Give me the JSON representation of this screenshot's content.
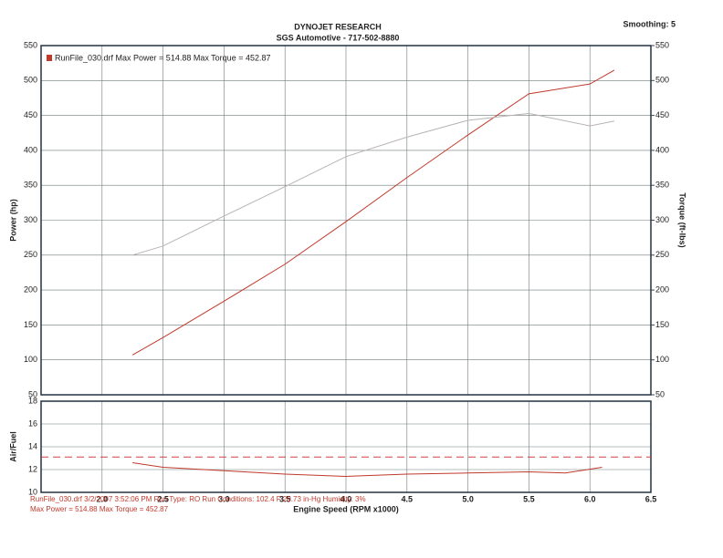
{
  "chart_data": [
    {
      "type": "line",
      "title": "DYNOJET RESEARCH",
      "subtitle": "SGS Automotive - 717-502-8880",
      "smoothing": "Smoothing: 5",
      "legend_text": "RunFile_030.drf Max Power = 514.88   Max Torque = 452.87",
      "x": [
        2.25,
        2.5,
        3.0,
        3.5,
        4.0,
        4.5,
        5.0,
        5.5,
        6.0,
        6.2
      ],
      "xlim": [
        1.5,
        6.5
      ],
      "ylim": [
        50,
        550
      ],
      "yticks": [
        50,
        100,
        150,
        200,
        250,
        300,
        350,
        400,
        450,
        500,
        550
      ],
      "y2lim": [
        50,
        550
      ],
      "y2ticks": [
        50,
        100,
        150,
        200,
        250,
        300,
        350,
        400,
        450,
        500,
        550
      ],
      "grid": true,
      "series": [
        {
          "name": "Power (hp)",
          "color": "#c0392b",
          "values": [
            107,
            132,
            184,
            237,
            298,
            361,
            422,
            481,
            495,
            514.88
          ]
        },
        {
          "name": "Torque (ft-lbs)",
          "color": "#b9b3b3",
          "axis": "y2",
          "values": [
            250,
            263,
            306,
            348,
            391,
            419,
            443,
            452.87,
            435,
            442
          ]
        }
      ]
    },
    {
      "type": "line",
      "x": [
        2.25,
        2.5,
        3.0,
        3.5,
        4.0,
        4.5,
        5.0,
        5.5,
        5.8,
        6.1
      ],
      "xlim": [
        1.5,
        6.5
      ],
      "xticks": [
        {
          "value": 2,
          "label": "2.0"
        },
        2.5,
        {
          "value": 3,
          "label": "3.0"
        },
        3.5,
        {
          "value": 4,
          "label": "4.0"
        },
        4.5,
        {
          "value": 5,
          "label": "5.0"
        },
        5.5,
        {
          "value": 6,
          "label": "6.0"
        },
        6.5
      ],
      "xlabel": "Engine Speed (RPM x1000)",
      "ylim": [
        10,
        18
      ],
      "yticks": [
        10,
        12,
        14,
        16,
        18
      ],
      "grid": true,
      "reference_line": 13.1,
      "series": [
        {
          "name": "Air/Fuel",
          "color": "#c0392b",
          "values": [
            12.6,
            12.2,
            11.9,
            11.6,
            11.4,
            11.6,
            11.7,
            11.8,
            11.7,
            12.2
          ]
        }
      ],
      "notes": [
        "RunFile_030.drf  3/2/2007 3:52:06 PM  Run Type: RO  Run Conditions: 102.4 F  29.73 in-Hg  Humidity: 3%",
        "Max Power = 514.88  Max Torque = 452.87"
      ]
    }
  ]
}
